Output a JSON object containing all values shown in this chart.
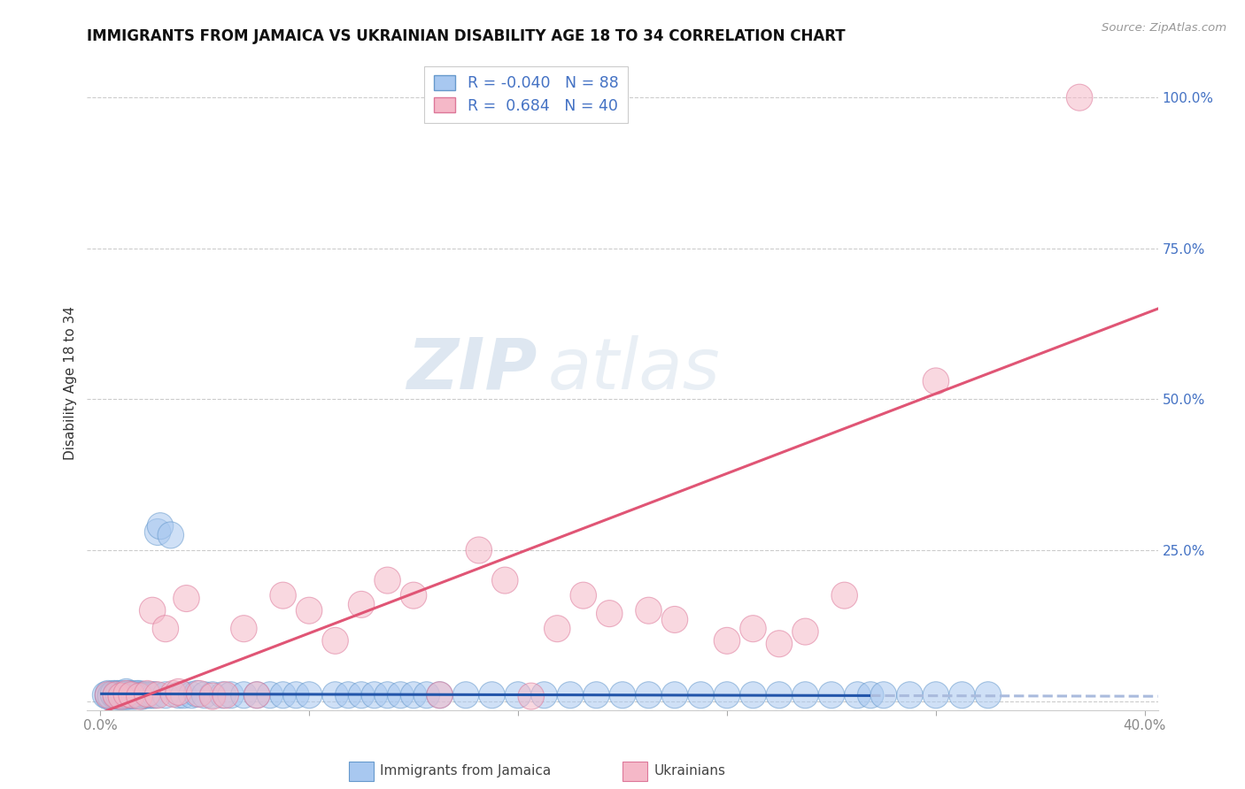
{
  "title": "IMMIGRANTS FROM JAMAICA VS UKRAINIAN DISABILITY AGE 18 TO 34 CORRELATION CHART",
  "source": "Source: ZipAtlas.com",
  "ylabel": "Disability Age 18 to 34",
  "xlim": [
    -0.005,
    0.405
  ],
  "ylim": [
    -0.015,
    1.07
  ],
  "jamaica_color": "#a8c8f0",
  "jamaica_edge_color": "#6699cc",
  "ukraine_color": "#f5b8c8",
  "ukraine_edge_color": "#dd7799",
  "jamaica_line_color": "#2255aa",
  "jamaica_dash_color": "#aabbdd",
  "ukraine_line_color": "#e05575",
  "jamaica_R": -0.04,
  "jamaica_N": 88,
  "ukraine_R": 0.684,
  "ukraine_N": 40,
  "watermark_zip": "ZIP",
  "watermark_atlas": "atlas",
  "background_color": "#ffffff",
  "grid_color": "#cccccc",
  "title_fontsize": 12,
  "axis_label_color": "#333333",
  "tick_color": "#888888",
  "right_tick_color": "#4472c4",
  "legend_jamaica_label": "Immigrants from Jamaica",
  "legend_ukraine_label": "Ukrainians",
  "jamaica_scatter_x": [
    0.002,
    0.003,
    0.003,
    0.004,
    0.004,
    0.005,
    0.005,
    0.006,
    0.006,
    0.006,
    0.007,
    0.007,
    0.007,
    0.008,
    0.008,
    0.008,
    0.009,
    0.009,
    0.009,
    0.01,
    0.01,
    0.01,
    0.011,
    0.011,
    0.012,
    0.012,
    0.013,
    0.013,
    0.014,
    0.014,
    0.015,
    0.015,
    0.016,
    0.016,
    0.017,
    0.018,
    0.019,
    0.02,
    0.021,
    0.022,
    0.023,
    0.025,
    0.027,
    0.03,
    0.032,
    0.035,
    0.037,
    0.04,
    0.043,
    0.047,
    0.05,
    0.055,
    0.06,
    0.065,
    0.07,
    0.075,
    0.08,
    0.09,
    0.095,
    0.1,
    0.105,
    0.11,
    0.115,
    0.12,
    0.125,
    0.13,
    0.14,
    0.15,
    0.16,
    0.17,
    0.18,
    0.19,
    0.2,
    0.21,
    0.22,
    0.23,
    0.24,
    0.25,
    0.26,
    0.27,
    0.28,
    0.29,
    0.295,
    0.3,
    0.31,
    0.32,
    0.33,
    0.34
  ],
  "jamaica_scatter_y": [
    0.01,
    0.008,
    0.012,
    0.01,
    0.008,
    0.01,
    0.012,
    0.008,
    0.01,
    0.012,
    0.008,
    0.01,
    0.012,
    0.008,
    0.01,
    0.012,
    0.008,
    0.01,
    0.012,
    0.008,
    0.01,
    0.015,
    0.008,
    0.012,
    0.01,
    0.012,
    0.008,
    0.01,
    0.01,
    0.012,
    0.01,
    0.012,
    0.01,
    0.008,
    0.01,
    0.01,
    0.01,
    0.01,
    0.01,
    0.28,
    0.29,
    0.01,
    0.275,
    0.01,
    0.01,
    0.01,
    0.012,
    0.01,
    0.01,
    0.01,
    0.01,
    0.01,
    0.01,
    0.01,
    0.01,
    0.01,
    0.01,
    0.01,
    0.01,
    0.01,
    0.01,
    0.01,
    0.01,
    0.01,
    0.01,
    0.01,
    0.01,
    0.01,
    0.01,
    0.01,
    0.01,
    0.01,
    0.01,
    0.01,
    0.01,
    0.01,
    0.01,
    0.01,
    0.01,
    0.01,
    0.01,
    0.01,
    0.01,
    0.01,
    0.01,
    0.01,
    0.01,
    0.01
  ],
  "ukraine_scatter_x": [
    0.003,
    0.006,
    0.008,
    0.01,
    0.012,
    0.015,
    0.018,
    0.02,
    0.022,
    0.025,
    0.028,
    0.03,
    0.033,
    0.038,
    0.043,
    0.048,
    0.055,
    0.06,
    0.07,
    0.08,
    0.09,
    0.1,
    0.11,
    0.12,
    0.13,
    0.145,
    0.155,
    0.165,
    0.175,
    0.185,
    0.195,
    0.21,
    0.22,
    0.24,
    0.25,
    0.26,
    0.27,
    0.285,
    0.32,
    0.375
  ],
  "ukraine_scatter_y": [
    0.01,
    0.01,
    0.008,
    0.012,
    0.01,
    0.008,
    0.012,
    0.15,
    0.01,
    0.12,
    0.012,
    0.015,
    0.17,
    0.012,
    0.008,
    0.01,
    0.12,
    0.01,
    0.175,
    0.15,
    0.1,
    0.16,
    0.2,
    0.175,
    0.01,
    0.25,
    0.2,
    0.008,
    0.12,
    0.175,
    0.145,
    0.15,
    0.135,
    0.1,
    0.12,
    0.095,
    0.115,
    0.175,
    0.53,
    1.0
  ],
  "j_line_x0": 0.0,
  "j_line_x1": 0.295,
  "j_line_x2": 0.405,
  "j_line_y_at_0": 0.012,
  "j_line_y_at_295": 0.009,
  "u_line_x0": 0.0,
  "u_line_x1": 0.405,
  "u_line_y_at_0": -0.02,
  "u_line_y_at_405": 0.65
}
